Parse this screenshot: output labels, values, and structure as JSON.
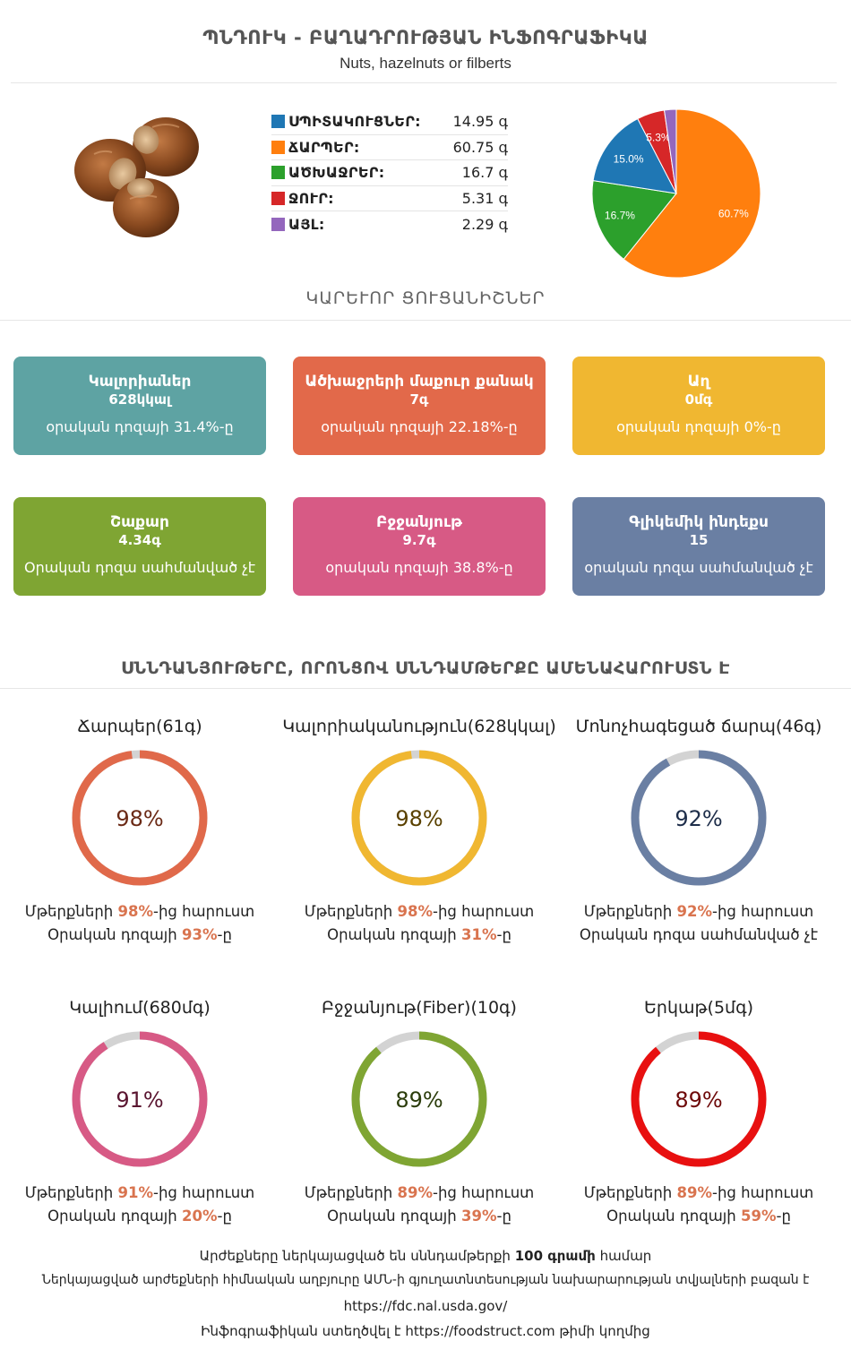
{
  "header": {
    "title": "ՊՆԴՈՒԿ - ԲԱՂԱԴՐՈՒԹՅԱՆ ԻՆՖՈԳՐԱՖԻԿԱ",
    "subtitle": "Nuts, hazelnuts or filberts"
  },
  "macros": [
    {
      "label": "ՍՊԻՏԱԿՈՒՑՆԵՐ:",
      "value": "14.95 գ",
      "color": "#1f77b4"
    },
    {
      "label": "ՃԱՐՊԵՐ:",
      "value": "60.75 գ",
      "color": "#ff7f0e"
    },
    {
      "label": "ԱԾԽԱՋՐԵՐ:",
      "value": "16.7 գ",
      "color": "#2ca02c"
    },
    {
      "label": "ՋՈՒՐ:",
      "value": "5.31 գ",
      "color": "#d62728"
    },
    {
      "label": "ԱՅԼ:",
      "value": "2.29 գ",
      "color": "#9467bd"
    }
  ],
  "chart_data": {
    "type": "pie",
    "slices": [
      {
        "value": 60.75,
        "label": "60.7%",
        "color": "#ff7f0e"
      },
      {
        "value": 16.7,
        "label": "16.7%",
        "color": "#2ca02c"
      },
      {
        "value": 14.95,
        "label": "15.0%",
        "color": "#1f77b4"
      },
      {
        "value": 5.31,
        "label": "5.3%",
        "color": "#d62728"
      },
      {
        "value": 2.29,
        "label": "",
        "color": "#9467bd"
      }
    ]
  },
  "key_stats_heading": "ԿԱՐԵՒՈՐ ՑՈՒՑԱՆԻՇՆԵՐ",
  "cards": [
    {
      "title": "Կալորիաներ",
      "value": "628կկալ",
      "note": "օրական դոզայի 31.4%-ը",
      "color": "#5ea3a3"
    },
    {
      "title": "Ածխաջրերի մաքուր քանակ",
      "value": "7գ",
      "note": "օրական դոզայի 22.18%-ը",
      "color": "#e2694a"
    },
    {
      "title": "Աղ",
      "value": "0մգ",
      "note": "օրական դոզայի 0%-ը",
      "color": "#f0b731"
    },
    {
      "title": "Շաքար",
      "value": "4.34գ",
      "note": "Օրական դոզա սահմանված չէ",
      "color": "#7fa533"
    },
    {
      "title": "Բջջանյութ",
      "value": "9.7գ",
      "note": "օրական դոզայի 38.8%-ը",
      "color": "#d75a85"
    },
    {
      "title": "Գլիկեմիկ ինդեքս",
      "value": "15",
      "note": "օրական դոզա սահմանված չէ",
      "color": "#6a7fa3"
    }
  ],
  "rich_heading": "ՍՆՆԴԱՆՅՈՒԹԵՐԸ, ՈՐՈՆՑՈՎ ՍՆՆԴԱՄԹԵՐՔԸ ԱՄԵՆԱՀԱՐՈՒՍՏՆ Է",
  "rings": [
    {
      "title": "Ճարպեր(61գ)",
      "percent": 98,
      "label": "98%",
      "color": "#e0694a",
      "text_color": "#6b2a16",
      "line1_pre": "Մթերքների ",
      "line1_pct": "98%",
      "line1_post": "-ից հարուստ",
      "line2_pre": "Օրական դոզայի ",
      "line2_pct": "93%",
      "line2_post": "-ը"
    },
    {
      "title": "Կալորիականություն(628կկալ)",
      "percent": 98,
      "label": "98%",
      "color": "#f0b731",
      "text_color": "#5a4100",
      "line1_pre": "Մթերքների ",
      "line1_pct": "98%",
      "line1_post": "-ից հարուստ",
      "line2_pre": "Օրական դոզայի ",
      "line2_pct": "31%",
      "line2_post": "-ը"
    },
    {
      "title": "Մոնոչհագեցած ճարպ(46գ)",
      "percent": 92,
      "label": "92%",
      "color": "#6a7fa3",
      "text_color": "#1e2e4a",
      "line1_pre": "Մթերքների ",
      "line1_pct": "92%",
      "line1_post": "-ից հարուստ",
      "line2_pre": "Օրական դոզա սահմանված չէ",
      "line2_pct": "",
      "line2_post": ""
    },
    {
      "title": "Կալիում(680մգ)",
      "percent": 91,
      "label": "91%",
      "color": "#d75a85",
      "text_color": "#5a1530",
      "line1_pre": "Մթերքների ",
      "line1_pct": "91%",
      "line1_post": "-ից հարուստ",
      "line2_pre": "Օրական դոզայի ",
      "line2_pct": "20%",
      "line2_post": "-ը"
    },
    {
      "title": "Բջջանյութ(Fiber)(10գ)",
      "percent": 89,
      "label": "89%",
      "color": "#7fa533",
      "text_color": "#2c3d0c",
      "line1_pre": "Մթերքների ",
      "line1_pct": "89%",
      "line1_post": "-ից հարուստ",
      "line2_pre": "Օրական դոզայի ",
      "line2_pct": "39%",
      "line2_post": "-ը"
    },
    {
      "title": "Երկաթ(5մգ)",
      "percent": 89,
      "label": "89%",
      "color": "#e81010",
      "text_color": "#6e0a0a",
      "line1_pre": "Մթերքների ",
      "line1_pct": "89%",
      "line1_post": "-ից հարուստ",
      "line2_pre": "Օրական դոզայի ",
      "line2_pct": "59%",
      "line2_post": "-ը"
    }
  ],
  "footer": {
    "line1_pre": "Արժեքները ներկայացված են սննդամթերքի ",
    "line1_bold": "100 գրամի",
    "line1_post": " համար",
    "line2": "Ներկայացված արժեքների հիմնական աղբյուրը ԱՄՆ-ի գյուղատնտեսության նախարարության տվյալների բազան է",
    "line3": "https://fdc.nal.usda.gov/",
    "line4": "Ինֆոգրաֆիկան ստեղծվել է https://foodstruct.com թիմի կողմից"
  }
}
